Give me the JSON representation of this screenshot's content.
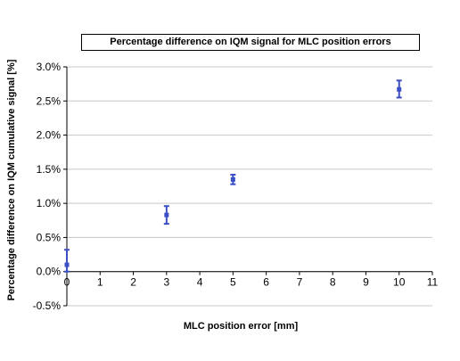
{
  "chart_data": {
    "type": "scatter",
    "title": "Percentage difference on IQM signal for MLC position errors",
    "xlabel": "MLC position error [mm]",
    "ylabel": "Percentage difference on IQM cumulative signal [%]",
    "xlim": [
      0,
      11
    ],
    "ylim": [
      -0.5,
      3.0
    ],
    "xticks": [
      "0",
      "1",
      "2",
      "3",
      "4",
      "5",
      "6",
      "7",
      "8",
      "9",
      "10",
      "11"
    ],
    "yticks": [
      "-0.5%",
      "0.0%",
      "0.5%",
      "1.0%",
      "1.5%",
      "2.0%",
      "2.5%",
      "3.0%"
    ],
    "grid": true,
    "series": [
      {
        "color": "#3a4fc4",
        "points": [
          {
            "x": 0,
            "y": 0.1,
            "err_low": 0.0,
            "err_high": 0.32
          },
          {
            "x": 3,
            "y": 0.83,
            "err_low": 0.7,
            "err_high": 0.96
          },
          {
            "x": 5,
            "y": 1.35,
            "err_low": 1.28,
            "err_high": 1.42
          },
          {
            "x": 10,
            "y": 2.67,
            "err_low": 2.55,
            "err_high": 2.8
          }
        ]
      }
    ]
  }
}
